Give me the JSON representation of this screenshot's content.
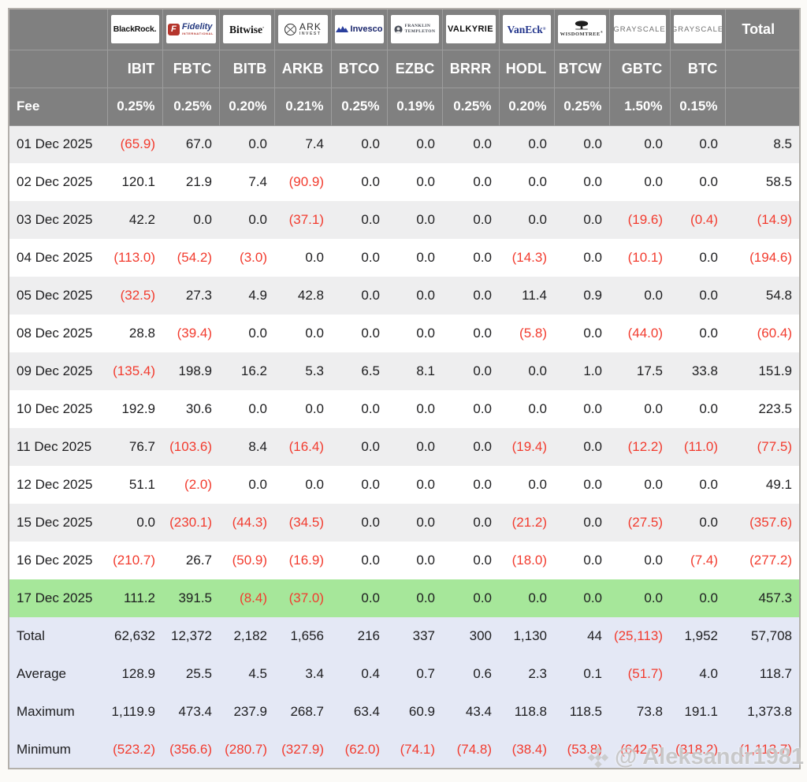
{
  "page": {
    "background": "#fbfaf7"
  },
  "colors": {
    "page_bg": "#fbfaf7",
    "header_bg": "#808080",
    "header_border": "#9d9d9d",
    "table_border": "#b3b0ab",
    "stripe": "#eeeeef",
    "highlight_green": "#a6e79a",
    "summary_bg": "#e4e8f5",
    "negative_red": "#f23b2e",
    "text": "#1d1d1f",
    "watermark_gray": "#c6c6c6"
  },
  "table": {
    "corner_label": "",
    "fee_row_label": "Fee",
    "total_column_label": "Total",
    "columns": [
      {
        "provider": "BlackRock",
        "logo_style": "blackrock",
        "logo_parts": [
          "BlackRock."
        ],
        "ticker": "IBIT",
        "fee": "0.25%"
      },
      {
        "provider": "Fidelity",
        "logo_style": "fidelity",
        "logo_parts": [
          "F",
          "Fidelity",
          "INTERNATIONAL"
        ],
        "ticker": "FBTC",
        "fee": "0.25%"
      },
      {
        "provider": "Bitwise",
        "logo_style": "bitwise",
        "logo_parts": [
          "Bitwise"
        ],
        "ticker": "BITB",
        "fee": "0.20%"
      },
      {
        "provider": "ARK Invest",
        "logo_style": "ark",
        "logo_parts": [
          "ARK",
          "INVEST"
        ],
        "ticker": "ARKB",
        "fee": "0.21%"
      },
      {
        "provider": "Invesco",
        "logo_style": "invesco",
        "logo_parts": [
          "Invesco"
        ],
        "ticker": "BTCO",
        "fee": "0.25%"
      },
      {
        "provider": "Franklin Templeton",
        "logo_style": "franklin",
        "logo_parts": [
          "FRANKLIN",
          "TEMPLETON"
        ],
        "ticker": "EZBC",
        "fee": "0.19%"
      },
      {
        "provider": "Valkyrie",
        "logo_style": "valkyrie",
        "logo_parts": [
          "VALKYRIE"
        ],
        "ticker": "BRRR",
        "fee": "0.25%"
      },
      {
        "provider": "VanEck",
        "logo_style": "vaneck",
        "logo_parts": [
          "VanEck"
        ],
        "ticker": "HODL",
        "fee": "0.20%"
      },
      {
        "provider": "WisdomTree",
        "logo_style": "wisdomtree",
        "logo_parts": [
          "WISDOMTREE"
        ],
        "ticker": "BTCW",
        "fee": "0.25%"
      },
      {
        "provider": "Grayscale",
        "logo_style": "grayscale",
        "logo_parts": [
          "GRAYSCALE"
        ],
        "ticker": "GBTC",
        "fee": "1.50%"
      },
      {
        "provider": "Grayscale",
        "logo_style": "grayscale",
        "logo_parts": [
          "GRAYSCALE"
        ],
        "ticker": "BTC",
        "fee": "0.15%"
      }
    ],
    "date_rows": [
      {
        "date": "01 Dec 2025",
        "values": [
          "(65.9)",
          "67.0",
          "0.0",
          "7.4",
          "0.0",
          "0.0",
          "0.0",
          "0.0",
          "0.0",
          "0.0",
          "0.0"
        ],
        "total": "8.5"
      },
      {
        "date": "02 Dec 2025",
        "values": [
          "120.1",
          "21.9",
          "7.4",
          "(90.9)",
          "0.0",
          "0.0",
          "0.0",
          "0.0",
          "0.0",
          "0.0",
          "0.0"
        ],
        "total": "58.5"
      },
      {
        "date": "03 Dec 2025",
        "values": [
          "42.2",
          "0.0",
          "0.0",
          "(37.1)",
          "0.0",
          "0.0",
          "0.0",
          "0.0",
          "0.0",
          "(19.6)",
          "(0.4)"
        ],
        "total": "(14.9)"
      },
      {
        "date": "04 Dec 2025",
        "values": [
          "(113.0)",
          "(54.2)",
          "(3.0)",
          "0.0",
          "0.0",
          "0.0",
          "0.0",
          "(14.3)",
          "0.0",
          "(10.1)",
          "0.0"
        ],
        "total": "(194.6)"
      },
      {
        "date": "05 Dec 2025",
        "values": [
          "(32.5)",
          "27.3",
          "4.9",
          "42.8",
          "0.0",
          "0.0",
          "0.0",
          "11.4",
          "0.9",
          "0.0",
          "0.0"
        ],
        "total": "54.8"
      },
      {
        "date": "08 Dec 2025",
        "values": [
          "28.8",
          "(39.4)",
          "0.0",
          "0.0",
          "0.0",
          "0.0",
          "0.0",
          "(5.8)",
          "0.0",
          "(44.0)",
          "0.0"
        ],
        "total": "(60.4)"
      },
      {
        "date": "09 Dec 2025",
        "values": [
          "(135.4)",
          "198.9",
          "16.2",
          "5.3",
          "6.5",
          "8.1",
          "0.0",
          "0.0",
          "1.0",
          "17.5",
          "33.8"
        ],
        "total": "151.9"
      },
      {
        "date": "10 Dec 2025",
        "values": [
          "192.9",
          "30.6",
          "0.0",
          "0.0",
          "0.0",
          "0.0",
          "0.0",
          "0.0",
          "0.0",
          "0.0",
          "0.0"
        ],
        "total": "223.5"
      },
      {
        "date": "11 Dec 2025",
        "values": [
          "76.7",
          "(103.6)",
          "8.4",
          "(16.4)",
          "0.0",
          "0.0",
          "0.0",
          "(19.4)",
          "0.0",
          "(12.2)",
          "(11.0)"
        ],
        "total": "(77.5)"
      },
      {
        "date": "12 Dec 2025",
        "values": [
          "51.1",
          "(2.0)",
          "0.0",
          "0.0",
          "0.0",
          "0.0",
          "0.0",
          "0.0",
          "0.0",
          "0.0",
          "0.0"
        ],
        "total": "49.1"
      },
      {
        "date": "15 Dec 2025",
        "values": [
          "0.0",
          "(230.1)",
          "(44.3)",
          "(34.5)",
          "0.0",
          "0.0",
          "0.0",
          "(21.2)",
          "0.0",
          "(27.5)",
          "0.0"
        ],
        "total": "(357.6)"
      },
      {
        "date": "16 Dec 2025",
        "values": [
          "(210.7)",
          "26.7",
          "(50.9)",
          "(16.9)",
          "0.0",
          "0.0",
          "0.0",
          "(18.0)",
          "0.0",
          "0.0",
          "(7.4)"
        ],
        "total": "(277.2)"
      },
      {
        "date": "17 Dec 2025",
        "values": [
          "111.2",
          "391.5",
          "(8.4)",
          "(37.0)",
          "0.0",
          "0.0",
          "0.0",
          "0.0",
          "0.0",
          "0.0",
          "0.0"
        ],
        "total": "457.3",
        "highlight": true
      }
    ],
    "summary_rows": [
      {
        "label": "Total",
        "values": [
          "62,632",
          "12,372",
          "2,182",
          "1,656",
          "216",
          "337",
          "300",
          "1,130",
          "44",
          "(25,113)",
          "1,952"
        ],
        "total": "57,708"
      },
      {
        "label": "Average",
        "values": [
          "128.9",
          "25.5",
          "4.5",
          "3.4",
          "0.4",
          "0.7",
          "0.6",
          "2.3",
          "0.1",
          "(51.7)",
          "4.0"
        ],
        "total": "118.7"
      },
      {
        "label": "Maximum",
        "values": [
          "1,119.9",
          "473.4",
          "237.9",
          "268.7",
          "63.4",
          "60.9",
          "43.4",
          "118.8",
          "118.5",
          "73.8",
          "191.1"
        ],
        "total": "1,373.8"
      },
      {
        "label": "Minimum",
        "values": [
          "(523.2)",
          "(356.6)",
          "(280.7)",
          "(327.9)",
          "(62.0)",
          "(74.1)",
          "(74.8)",
          "(38.4)",
          "(53.8)",
          "(642.5)",
          "(318.2)"
        ],
        "total": "(1,113.7)"
      }
    ]
  },
  "watermark": {
    "icon": "binance-diamond",
    "text": "@ Aleksandr1981"
  }
}
